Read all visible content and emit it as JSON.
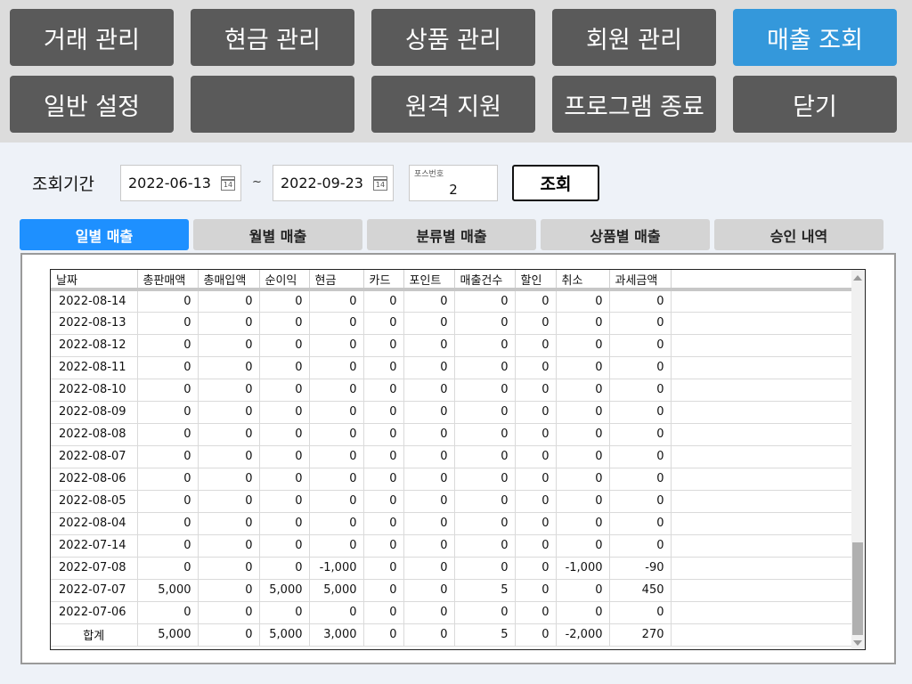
{
  "menu": {
    "trade": "거래 관리",
    "cash": "현금 관리",
    "product": "상품 관리",
    "member": "회원 관리",
    "sales": "매출 조회",
    "settings": "일반 설정",
    "blank": "",
    "remote": "원격 지원",
    "exit": "프로그램 종료",
    "close": "닫기"
  },
  "query": {
    "period_label": "조회기간",
    "start_date": "2022-06-13",
    "end_date": "2022-09-23",
    "tilde": "~",
    "calendar_icon_text": "14",
    "pos_label": "포스번호",
    "pos_value": "2",
    "search_button": "조회"
  },
  "tabs": [
    "일별 매출",
    "월별 매출",
    "분류별 매출",
    "상품별 매출",
    "승인 내역"
  ],
  "active_tab": 0,
  "colors": {
    "menu_bg": "#5a5a5a",
    "menu_active": "#3498db",
    "tab_active": "#1e90ff"
  },
  "grid": {
    "columns": [
      "날짜",
      "총판매액",
      "총매입액",
      "순이익",
      "현금",
      "카드",
      "포인트",
      "매출건수",
      "할인",
      "취소",
      "과세금액"
    ],
    "rows": [
      [
        "2022-08-14",
        "0",
        "0",
        "0",
        "0",
        "0",
        "0",
        "0",
        "0",
        "0",
        "0"
      ],
      [
        "2022-08-13",
        "0",
        "0",
        "0",
        "0",
        "0",
        "0",
        "0",
        "0",
        "0",
        "0"
      ],
      [
        "2022-08-12",
        "0",
        "0",
        "0",
        "0",
        "0",
        "0",
        "0",
        "0",
        "0",
        "0"
      ],
      [
        "2022-08-11",
        "0",
        "0",
        "0",
        "0",
        "0",
        "0",
        "0",
        "0",
        "0",
        "0"
      ],
      [
        "2022-08-10",
        "0",
        "0",
        "0",
        "0",
        "0",
        "0",
        "0",
        "0",
        "0",
        "0"
      ],
      [
        "2022-08-09",
        "0",
        "0",
        "0",
        "0",
        "0",
        "0",
        "0",
        "0",
        "0",
        "0"
      ],
      [
        "2022-08-08",
        "0",
        "0",
        "0",
        "0",
        "0",
        "0",
        "0",
        "0",
        "0",
        "0"
      ],
      [
        "2022-08-07",
        "0",
        "0",
        "0",
        "0",
        "0",
        "0",
        "0",
        "0",
        "0",
        "0"
      ],
      [
        "2022-08-06",
        "0",
        "0",
        "0",
        "0",
        "0",
        "0",
        "0",
        "0",
        "0",
        "0"
      ],
      [
        "2022-08-05",
        "0",
        "0",
        "0",
        "0",
        "0",
        "0",
        "0",
        "0",
        "0",
        "0"
      ],
      [
        "2022-08-04",
        "0",
        "0",
        "0",
        "0",
        "0",
        "0",
        "0",
        "0",
        "0",
        "0"
      ],
      [
        "2022-07-14",
        "0",
        "0",
        "0",
        "0",
        "0",
        "0",
        "0",
        "0",
        "0",
        "0"
      ],
      [
        "2022-07-08",
        "0",
        "0",
        "0",
        "-1,000",
        "0",
        "0",
        "0",
        "0",
        "-1,000",
        "-90"
      ],
      [
        "2022-07-07",
        "5,000",
        "0",
        "5,000",
        "5,000",
        "0",
        "0",
        "5",
        "0",
        "0",
        "450"
      ],
      [
        "2022-07-06",
        "0",
        "0",
        "0",
        "0",
        "0",
        "0",
        "0",
        "0",
        "0",
        "0"
      ]
    ],
    "total": [
      "합계",
      "5,000",
      "0",
      "5,000",
      "3,000",
      "0",
      "0",
      "5",
      "0",
      "-2,000",
      "270"
    ]
  }
}
